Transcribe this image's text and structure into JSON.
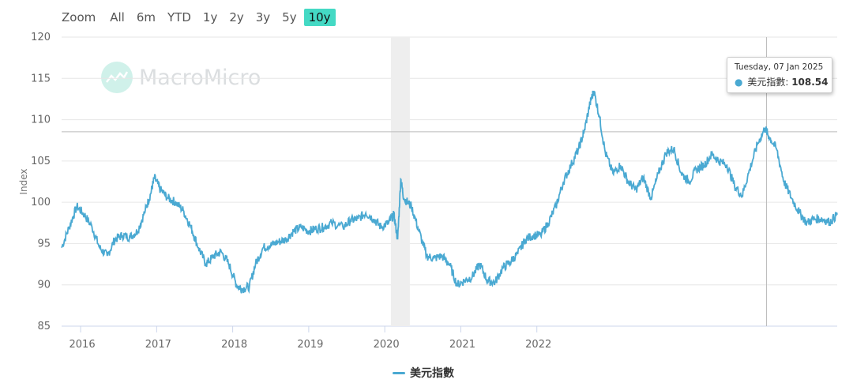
{
  "zoom": {
    "label": "Zoom",
    "buttons": [
      "All",
      "6m",
      "YTD",
      "1y",
      "2y",
      "3y",
      "5y",
      "10y"
    ],
    "active": "10y"
  },
  "watermark": {
    "text": "MacroMicro"
  },
  "tooltip": {
    "date": "Tuesday, 07 Jan 2025",
    "series_label": "美元指數",
    "value": "108.54"
  },
  "legend": {
    "label": "美元指數",
    "color": "#4aa9d2"
  },
  "chart_data": {
    "type": "line",
    "title": "",
    "xlabel": "",
    "ylabel": "Index",
    "ylim": [
      85,
      120
    ],
    "yticks": [
      85,
      90,
      95,
      100,
      105,
      110,
      115,
      120
    ],
    "xlim": [
      2015.75,
      2025.95
    ],
    "xticks": [
      "2016",
      "2017",
      "2018",
      "2019",
      "2020",
      "2021",
      "2022"
    ],
    "grid": true,
    "legend_position": "bottom",
    "shaded_regions": [
      [
        2020.08,
        2020.33
      ]
    ],
    "crosshair": {
      "x": 2025.02,
      "y": 108.54
    },
    "series": [
      {
        "name": "美元指數",
        "color": "#4aa9d2",
        "points": [
          [
            2015.75,
            94.5
          ],
          [
            2015.85,
            97.0
          ],
          [
            2015.95,
            99.5
          ],
          [
            2016.05,
            98.5
          ],
          [
            2016.15,
            97.0
          ],
          [
            2016.25,
            94.5
          ],
          [
            2016.35,
            93.5
          ],
          [
            2016.45,
            95.5
          ],
          [
            2016.55,
            96.0
          ],
          [
            2016.65,
            95.8
          ],
          [
            2016.75,
            96.5
          ],
          [
            2016.85,
            99.0
          ],
          [
            2016.92,
            101.0
          ],
          [
            2016.97,
            103.0
          ],
          [
            2017.05,
            101.5
          ],
          [
            2017.15,
            100.5
          ],
          [
            2017.25,
            100.0
          ],
          [
            2017.35,
            99.0
          ],
          [
            2017.45,
            97.0
          ],
          [
            2017.55,
            94.5
          ],
          [
            2017.65,
            92.5
          ],
          [
            2017.75,
            93.5
          ],
          [
            2017.85,
            94.0
          ],
          [
            2017.95,
            92.5
          ],
          [
            2018.05,
            90.0
          ],
          [
            2018.12,
            89.5
          ],
          [
            2018.22,
            89.8
          ],
          [
            2018.3,
            92.5
          ],
          [
            2018.4,
            94.5
          ],
          [
            2018.5,
            94.8
          ],
          [
            2018.6,
            95.2
          ],
          [
            2018.7,
            95.5
          ],
          [
            2018.8,
            96.5
          ],
          [
            2018.9,
            97.0
          ],
          [
            2019.0,
            96.5
          ],
          [
            2019.1,
            96.8
          ],
          [
            2019.2,
            97.0
          ],
          [
            2019.3,
            97.5
          ],
          [
            2019.45,
            97.0
          ],
          [
            2019.55,
            97.8
          ],
          [
            2019.65,
            98.0
          ],
          [
            2019.75,
            98.7
          ],
          [
            2019.85,
            98.0
          ],
          [
            2019.95,
            97.0
          ],
          [
            2020.05,
            97.5
          ],
          [
            2020.12,
            98.5
          ],
          [
            2020.17,
            95.5
          ],
          [
            2020.21,
            102.8
          ],
          [
            2020.25,
            100.5
          ],
          [
            2020.35,
            99.5
          ],
          [
            2020.45,
            96.5
          ],
          [
            2020.55,
            93.5
          ],
          [
            2020.65,
            93.2
          ],
          [
            2020.75,
            93.5
          ],
          [
            2020.85,
            92.5
          ],
          [
            2020.95,
            90.0
          ],
          [
            2021.05,
            90.5
          ],
          [
            2021.15,
            91.0
          ],
          [
            2021.25,
            92.5
          ],
          [
            2021.35,
            90.5
          ],
          [
            2021.45,
            90.3
          ],
          [
            2021.55,
            92.0
          ],
          [
            2021.65,
            92.8
          ],
          [
            2021.75,
            93.8
          ],
          [
            2021.85,
            95.5
          ],
          [
            2021.95,
            96.0
          ],
          [
            2022.05,
            96.0
          ],
          [
            2022.15,
            97.5
          ],
          [
            2022.25,
            99.5
          ],
          [
            2022.35,
            102.5
          ],
          [
            2022.45,
            104.5
          ],
          [
            2022.55,
            106.5
          ],
          [
            2022.62,
            108.5
          ],
          [
            2022.7,
            112.0
          ],
          [
            2022.75,
            113.5
          ],
          [
            2022.82,
            110.5
          ],
          [
            2022.9,
            106.0
          ],
          [
            2023.0,
            103.5
          ],
          [
            2023.1,
            104.5
          ],
          [
            2023.2,
            102.5
          ],
          [
            2023.3,
            101.5
          ],
          [
            2023.4,
            103.0
          ],
          [
            2023.5,
            100.5
          ],
          [
            2023.6,
            103.5
          ],
          [
            2023.7,
            106.0
          ],
          [
            2023.8,
            106.5
          ],
          [
            2023.9,
            103.5
          ],
          [
            2024.0,
            102.5
          ],
          [
            2024.1,
            104.0
          ],
          [
            2024.2,
            104.5
          ],
          [
            2024.3,
            105.8
          ],
          [
            2024.4,
            105.0
          ],
          [
            2024.5,
            104.5
          ],
          [
            2024.6,
            102.0
          ],
          [
            2024.7,
            100.8
          ],
          [
            2024.8,
            104.0
          ],
          [
            2024.9,
            107.0
          ],
          [
            2025.0,
            109.0
          ],
          [
            2025.05,
            108.0
          ],
          [
            2025.15,
            106.5
          ],
          [
            2025.25,
            102.5
          ],
          [
            2025.35,
            100.5
          ],
          [
            2025.45,
            98.8
          ],
          [
            2025.55,
            97.5
          ],
          [
            2025.65,
            98.0
          ],
          [
            2025.75,
            98.0
          ],
          [
            2025.85,
            97.6
          ],
          [
            2025.95,
            98.5
          ]
        ]
      }
    ]
  }
}
